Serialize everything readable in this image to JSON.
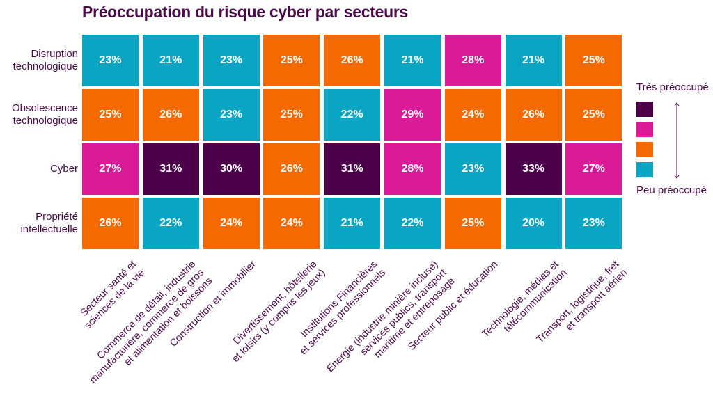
{
  "chart_data": {
    "type": "heatmap",
    "title": "Préoccupation du risque cyber par secteurs",
    "rows": [
      "Disruption technologique",
      "Obsolescence technologique",
      "Cyber",
      "Propriété intellectuelle"
    ],
    "row_labels_lines": [
      [
        "Disruption",
        "technologique"
      ],
      [
        "Obsolescence",
        "technologique"
      ],
      [
        "Cyber"
      ],
      [
        "Propriété",
        "intellectuelle"
      ]
    ],
    "columns": [
      "Secteur santé et sciences de la vie",
      "Commerce de détail, industrie manufacturière, commerce de gros et alimentation et boissons",
      "Construction et immobilier",
      "Divertissement, hôtellerie et loisirs (y compris les jeux)",
      "Institutions Financières et services professionnels",
      "Energie (industrie minière incluse) services publics, transport maritime et entreposage",
      "Secteur public et éducation",
      "Technologie, médias et télécommunication",
      "Transport, logistique, fret et transport aérien"
    ],
    "column_labels_lines": [
      [
        "Secteur santé et",
        "sciences de la vie"
      ],
      [
        "Commerce de détail, industrie",
        "manufacturière, commerce de gros",
        "et alimentation et boissons"
      ],
      [
        "Construction et immobilier"
      ],
      [
        "Divertissement, hôtellerie",
        "et loisirs (y compris les jeux)"
      ],
      [
        "Institutions Financières",
        "et services professionnels"
      ],
      [
        "Energie (industrie minière incluse)",
        "services publics, transport",
        "maritime et entreposage"
      ],
      [
        "Secteur public et éducation"
      ],
      [
        "Technologie, médias et",
        "télécommunication"
      ],
      [
        "Transport, logistique, fret",
        "et transport aérien"
      ]
    ],
    "values": [
      [
        23,
        21,
        23,
        25,
        26,
        21,
        28,
        21,
        25
      ],
      [
        25,
        26,
        23,
        25,
        22,
        29,
        24,
        26,
        25
      ],
      [
        27,
        31,
        30,
        26,
        31,
        28,
        23,
        33,
        27
      ],
      [
        26,
        22,
        24,
        24,
        21,
        22,
        25,
        20,
        23
      ]
    ],
    "levels": [
      [
        1,
        1,
        1,
        2,
        2,
        1,
        3,
        1,
        2
      ],
      [
        2,
        2,
        1,
        2,
        1,
        3,
        2,
        2,
        2
      ],
      [
        3,
        4,
        4,
        2,
        4,
        3,
        1,
        4,
        3
      ],
      [
        2,
        1,
        2,
        2,
        1,
        1,
        2,
        1,
        1
      ]
    ],
    "value_suffix": "%",
    "legend": {
      "top_label": "Très préoccupé",
      "bottom_label": "Peu préoccupé",
      "placement": "right",
      "scale": [
        {
          "level": 4,
          "color": "#4b0049"
        },
        {
          "level": 3,
          "color": "#da1a96"
        },
        {
          "level": 2,
          "color": "#f56a00"
        },
        {
          "level": 1,
          "color": "#09a5c2"
        }
      ]
    },
    "colors": {
      "4": "#4b0049",
      "3": "#da1a96",
      "2": "#f56a00",
      "1": "#09a5c2",
      "text": "#4b0a4a"
    }
  }
}
